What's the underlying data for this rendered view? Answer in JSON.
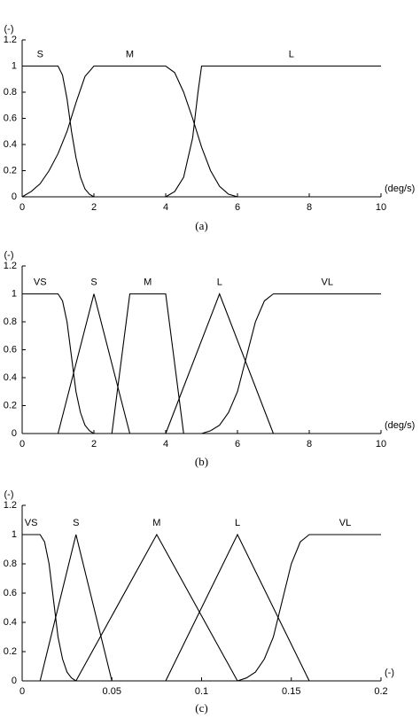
{
  "chart_data": [
    {
      "type": "line",
      "caption": "(a)",
      "xlabel": "(deg/s)",
      "ylabel": "(-)",
      "xlim": [
        0,
        10
      ],
      "ylim": [
        0,
        1.2
      ],
      "xticks": [
        0,
        2,
        4,
        6,
        8,
        10
      ],
      "yticks": [
        0,
        0.2,
        0.4,
        0.6,
        0.8,
        1,
        1.2
      ],
      "grid": false,
      "series": [
        {
          "name": "S",
          "color": "#000000",
          "x": [
            0,
            1,
            1.125,
            1.25,
            1.375,
            1.5,
            1.625,
            1.75,
            1.875,
            2
          ],
          "values": [
            1,
            1,
            0.93,
            0.75,
            0.5,
            0.3,
            0.15,
            0.06,
            0.02,
            0
          ]
        },
        {
          "name": "M",
          "color": "#000000",
          "x": [
            0,
            0.25,
            0.5,
            0.75,
            1,
            1.25,
            1.5,
            1.75,
            2,
            4,
            4.25,
            4.5,
            4.75,
            5,
            5.25,
            5.5,
            5.75,
            6
          ],
          "values": [
            0,
            0.04,
            0.1,
            0.2,
            0.33,
            0.5,
            0.72,
            0.92,
            1,
            1,
            0.95,
            0.8,
            0.6,
            0.38,
            0.2,
            0.08,
            0.02,
            0
          ]
        },
        {
          "name": "L",
          "color": "#000000",
          "x": [
            4,
            4.25,
            4.5,
            4.75,
            4.9,
            5,
            10
          ],
          "values": [
            0,
            0.04,
            0.15,
            0.45,
            0.8,
            1,
            1
          ]
        }
      ]
    },
    {
      "type": "line",
      "caption": "(b)",
      "xlabel": "(deg/s)",
      "ylabel": "(-)",
      "xlim": [
        0,
        10
      ],
      "ylim": [
        0,
        1.2
      ],
      "xticks": [
        0,
        2,
        4,
        6,
        8,
        10
      ],
      "yticks": [
        0,
        0.2,
        0.4,
        0.6,
        0.8,
        1,
        1.2
      ],
      "grid": false,
      "series": [
        {
          "name": "VS",
          "color": "#000000",
          "x": [
            0,
            1,
            1.125,
            1.25,
            1.375,
            1.5,
            1.625,
            1.75,
            1.875,
            2
          ],
          "values": [
            1,
            1,
            0.95,
            0.8,
            0.55,
            0.3,
            0.15,
            0.06,
            0.02,
            0
          ]
        },
        {
          "name": "S",
          "color": "#000000",
          "x": [
            1,
            2,
            3
          ],
          "values": [
            0,
            1,
            0
          ]
        },
        {
          "name": "M",
          "color": "#000000",
          "x": [
            2.5,
            3,
            4,
            4.5
          ],
          "values": [
            0,
            1,
            1,
            0
          ]
        },
        {
          "name": "L",
          "color": "#000000",
          "x": [
            4,
            5.5,
            7
          ],
          "values": [
            0,
            1,
            0
          ]
        },
        {
          "name": "VL",
          "color": "#000000",
          "x": [
            5,
            5.25,
            5.5,
            5.75,
            6,
            6.25,
            6.5,
            6.75,
            7,
            10
          ],
          "values": [
            0,
            0.02,
            0.06,
            0.15,
            0.3,
            0.55,
            0.8,
            0.95,
            1,
            1
          ]
        }
      ]
    },
    {
      "type": "line",
      "caption": "(c)",
      "xlabel": "(-)",
      "ylabel": "(-)",
      "xlim": [
        0,
        0.2
      ],
      "ylim": [
        0,
        1.2
      ],
      "xticks": [
        0,
        0.05,
        0.1,
        0.15,
        0.2
      ],
      "yticks": [
        0,
        0.2,
        0.4,
        0.6,
        0.8,
        1,
        1.2
      ],
      "grid": false,
      "series": [
        {
          "name": "VS",
          "color": "#000000",
          "x": [
            0,
            0.01,
            0.0125,
            0.015,
            0.0175,
            0.02,
            0.0225,
            0.025,
            0.0275,
            0.03
          ],
          "values": [
            1,
            1,
            0.95,
            0.8,
            0.55,
            0.3,
            0.15,
            0.06,
            0.02,
            0
          ]
        },
        {
          "name": "S",
          "color": "#000000",
          "x": [
            0.01,
            0.03,
            0.05
          ],
          "values": [
            0,
            1,
            0
          ]
        },
        {
          "name": "M",
          "color": "#000000",
          "x": [
            0.03,
            0.075,
            0.12
          ],
          "values": [
            0,
            1,
            0
          ]
        },
        {
          "name": "L",
          "color": "#000000",
          "x": [
            0.08,
            0.12,
            0.16
          ],
          "values": [
            0,
            1,
            0
          ]
        },
        {
          "name": "VL",
          "color": "#000000",
          "x": [
            0.12,
            0.125,
            0.13,
            0.135,
            0.14,
            0.145,
            0.15,
            0.155,
            0.16,
            0.2
          ],
          "values": [
            0,
            0.02,
            0.06,
            0.15,
            0.3,
            0.55,
            0.8,
            0.95,
            1,
            1
          ]
        }
      ]
    }
  ]
}
